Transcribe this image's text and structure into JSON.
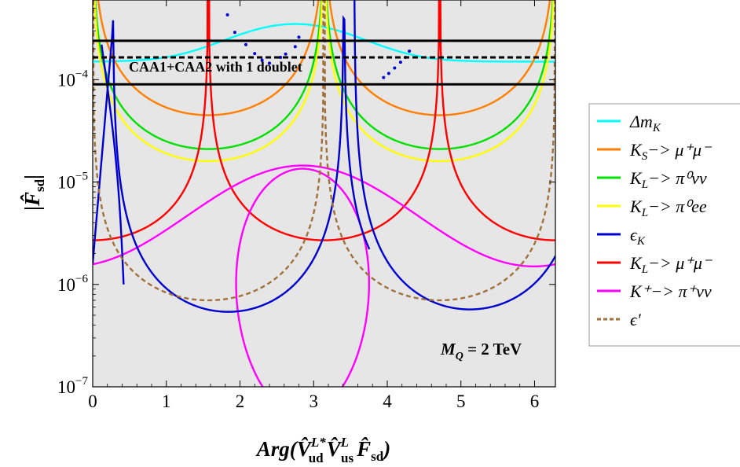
{
  "chart_data": {
    "type": "line",
    "title": "",
    "x_scale": "linear",
    "y_scale": "log",
    "xlim": [
      0,
      6.283
    ],
    "ylim": [
      1e-07,
      0.0006
    ],
    "x_ticks": [
      {
        "v": 0,
        "label": "0"
      },
      {
        "v": 1,
        "label": "1"
      },
      {
        "v": 2,
        "label": "2"
      },
      {
        "v": 3,
        "label": "3"
      },
      {
        "v": 4,
        "label": "4"
      },
      {
        "v": 5,
        "label": "5"
      },
      {
        "v": 6,
        "label": "6"
      }
    ],
    "y_ticks": [
      {
        "v": 1e-07,
        "base": "10",
        "exp": "−7"
      },
      {
        "v": 1e-06,
        "base": "10",
        "exp": "−6"
      },
      {
        "v": 1e-05,
        "base": "10",
        "exp": "−5"
      },
      {
        "v": 0.0001,
        "base": "10",
        "exp": "−4"
      }
    ],
    "xlabel": {
      "prefix": "Arg(",
      "v1": "V̂",
      "v1sup": "L*",
      "v1sub": "ud",
      "v2": "V̂",
      "v2sup": "L",
      "v2sub": "us",
      "f": "F̂",
      "fsub": "sd",
      "suffix": ")"
    },
    "ylabel": {
      "bar_open": "|",
      "f": "F̂",
      "fsub": "sd",
      "bar_close": "|"
    },
    "annotation_band": "CAA1+CAA2 with 1 doublet",
    "annotation_mass": {
      "m": "M",
      "sub": "Q",
      "rest": " = 2 TeV"
    },
    "band": {
      "y_low": 9e-05,
      "y_central": 0.000165,
      "y_high": 0.00024
    },
    "legend": [
      {
        "name": "Δm",
        "sub": "K",
        "rest": "",
        "color": "#00ffff",
        "dash": false
      },
      {
        "name": "K",
        "sub": "S",
        "rest": "−> μ⁺μ⁻",
        "color": "#ff7f00",
        "dash": false
      },
      {
        "name": "K",
        "sub": "L",
        "rest": "−> π⁰νν",
        "color": "#00e000",
        "dash": false
      },
      {
        "name": "K",
        "sub": "L",
        "rest": "−> π⁰ee",
        "color": "#ffff00",
        "dash": false
      },
      {
        "name": "ϵ",
        "sub": "K",
        "rest": "",
        "color": "#0000d0",
        "dash": false
      },
      {
        "name": "K",
        "sub": "L",
        "rest": "−> μ⁺μ⁻",
        "color": "#ff0000",
        "dash": false
      },
      {
        "name": "K⁺",
        "sub": "",
        "rest": "−> π⁺νν",
        "color": "#ff00ff",
        "dash": false
      },
      {
        "name": "ϵ'",
        "sub": "",
        "rest": "",
        "color": "#a0703a",
        "dash": true
      }
    ],
    "series": [
      {
        "key": "dmk",
        "color": "#00ffff",
        "shape": "bump",
        "min": 0.00015,
        "max": 0.00035,
        "center": 2.75,
        "width": 1.1
      },
      {
        "key": "ks",
        "color": "#ff7f00",
        "shape": "csc",
        "period": 3.14159,
        "phase": 0,
        "ymin": 4.5e-05
      },
      {
        "key": "klpinn",
        "color": "#00e000",
        "shape": "csc",
        "period": 3.14159,
        "phase": 0,
        "ymin": 2.1e-05
      },
      {
        "key": "klpiee",
        "color": "#ffff00",
        "shape": "csc",
        "period": 3.14159,
        "phase": 0,
        "ymin": 1.6e-05
      },
      {
        "key": "klmumu",
        "color": "#ff0000",
        "shape": "csc",
        "period": 3.14159,
        "phase": 1.5708,
        "ymin": 2.7e-06
      },
      {
        "key": "kplus",
        "color": "#ff00ff",
        "shape": "wave",
        "ymin": 1.5e-06,
        "ymax": 1.45e-05,
        "center": 2.85
      },
      {
        "key": "kplus_loop",
        "color": "#ff00ff",
        "shape": "loop",
        "cx": 2.85,
        "rx": 0.9,
        "ytop": 1.35e-05,
        "ybot": 5e-08
      },
      {
        "key": "epsk",
        "color": "#0000d0",
        "shape": "epsk",
        "ymin": 6e-07
      },
      {
        "key": "epsprime",
        "color": "#a0703a",
        "shape": "csc",
        "period": 3.14159,
        "phase": 0,
        "ymin": 7e-07,
        "dash": true
      }
    ],
    "scatter_points": [
      [
        1.83,
        0.00043
      ],
      [
        1.93,
        0.00029
      ],
      [
        2.08,
        0.00022
      ],
      [
        2.2,
        0.00018
      ],
      [
        2.3,
        0.000155
      ],
      [
        2.4,
        0.000145
      ],
      [
        2.55,
        0.000165
      ],
      [
        2.62,
        0.000178
      ],
      [
        2.75,
        0.00021
      ],
      [
        2.8,
        0.00026
      ],
      [
        3.95,
        0.000105
      ],
      [
        4.02,
        0.000115
      ],
      [
        4.1,
        0.00013
      ],
      [
        4.18,
        0.000148
      ],
      [
        4.25,
        0.000165
      ],
      [
        4.3,
        0.00019
      ]
    ]
  }
}
